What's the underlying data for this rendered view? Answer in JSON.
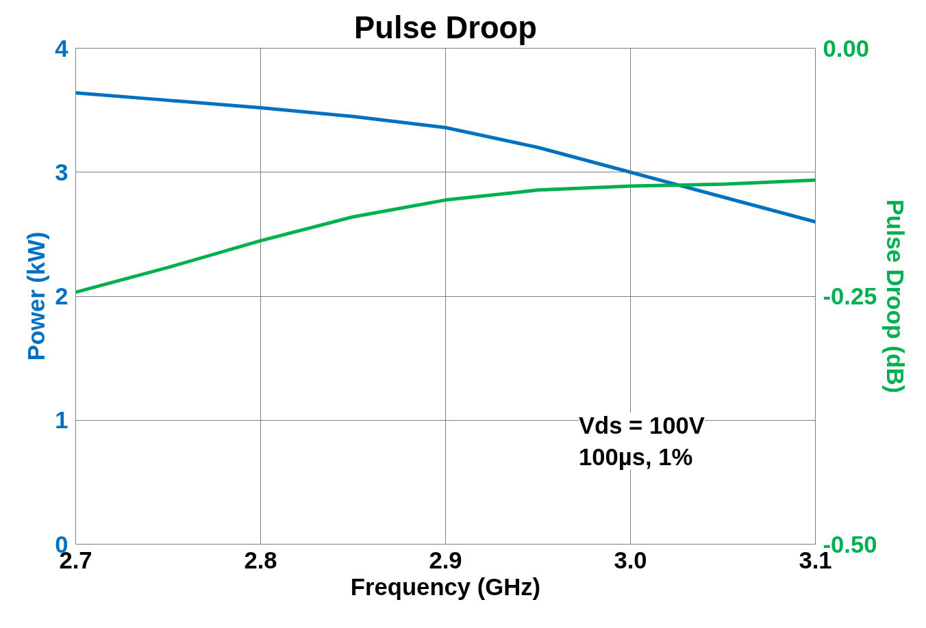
{
  "chart_data": {
    "type": "line",
    "title": "Pulse Droop",
    "xlabel": "Frequency (GHz)",
    "ylabel": "Power (kW)",
    "y2label": "Pulse Droop (dB)",
    "annotations": [
      "Vds = 100V\n100µs, 1%"
    ],
    "x": [
      2.7,
      2.75,
      2.8,
      2.85,
      2.9,
      2.95,
      3.0,
      3.05,
      3.1
    ],
    "series": [
      {
        "color": "#0070c0",
        "values": [
          3.64,
          3.58,
          3.52,
          3.45,
          3.36,
          3.2,
          3.0,
          2.8,
          2.6
        ]
      },
      {
        "color": "#00b050",
        "axis": "y2",
        "values": [
          -0.246,
          -0.221,
          -0.194,
          -0.17,
          -0.153,
          -0.143,
          -0.139,
          -0.137,
          -0.133
        ]
      }
    ],
    "xlim": [
      2.7,
      3.1
    ],
    "xticks": [
      2.7,
      2.8,
      2.9,
      {
        "value": 3.0,
        "label": "3.0"
      },
      3.1
    ],
    "ylim": [
      0,
      4
    ],
    "yticks": [
      0,
      1,
      2,
      3,
      4
    ],
    "y2lim": [
      -0.5,
      0
    ],
    "y2ticks": [
      {
        "value": -0.5,
        "label": "-0.50"
      },
      {
        "value": -0.25,
        "label": "-0.25"
      },
      {
        "value": 0,
        "label": "0.00"
      }
    ],
    "grid": true,
    "marker": "none",
    "line_style": "solid"
  }
}
